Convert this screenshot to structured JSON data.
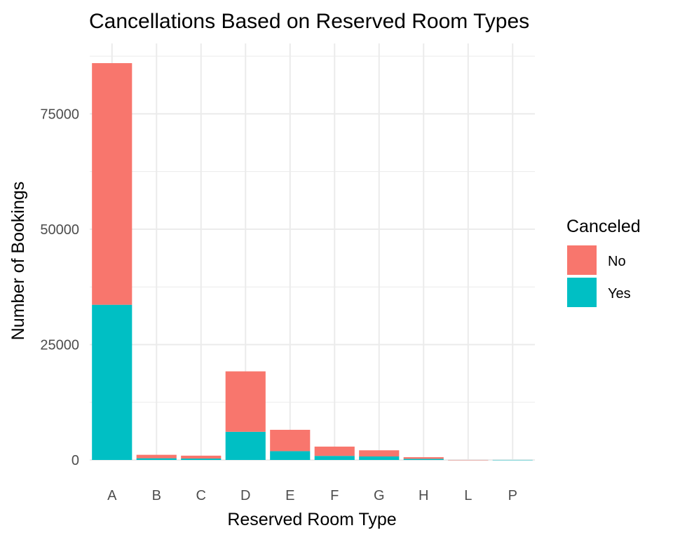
{
  "chart_data": {
    "type": "bar",
    "stacked": true,
    "title": "Cancellations Based on Reserved Room Types",
    "xlabel": "Reserved Room Type",
    "ylabel": "Number of Bookings",
    "categories": [
      "A",
      "B",
      "C",
      "D",
      "E",
      "F",
      "G",
      "H",
      "L",
      "P"
    ],
    "series": [
      {
        "name": "No",
        "color": "#F8766D",
        "values": [
          52364,
          750,
          624,
          13099,
          4621,
          2017,
          1331,
          356,
          4,
          0
        ]
      },
      {
        "name": "Yes",
        "color": "#00BFC4",
        "values": [
          33630,
          368,
          308,
          6102,
          1914,
          880,
          763,
          245,
          2,
          12
        ]
      }
    ],
    "ylim": [
      0,
      86000
    ],
    "yticks": [
      0,
      25000,
      50000,
      75000
    ],
    "ytick_labels": [
      "0",
      "25000",
      "50000",
      "75000"
    ],
    "legend": {
      "title": "Canceled",
      "position": "right"
    },
    "grid": true,
    "background": "#FFFFFF",
    "grid_color": "#EBEBEB"
  }
}
